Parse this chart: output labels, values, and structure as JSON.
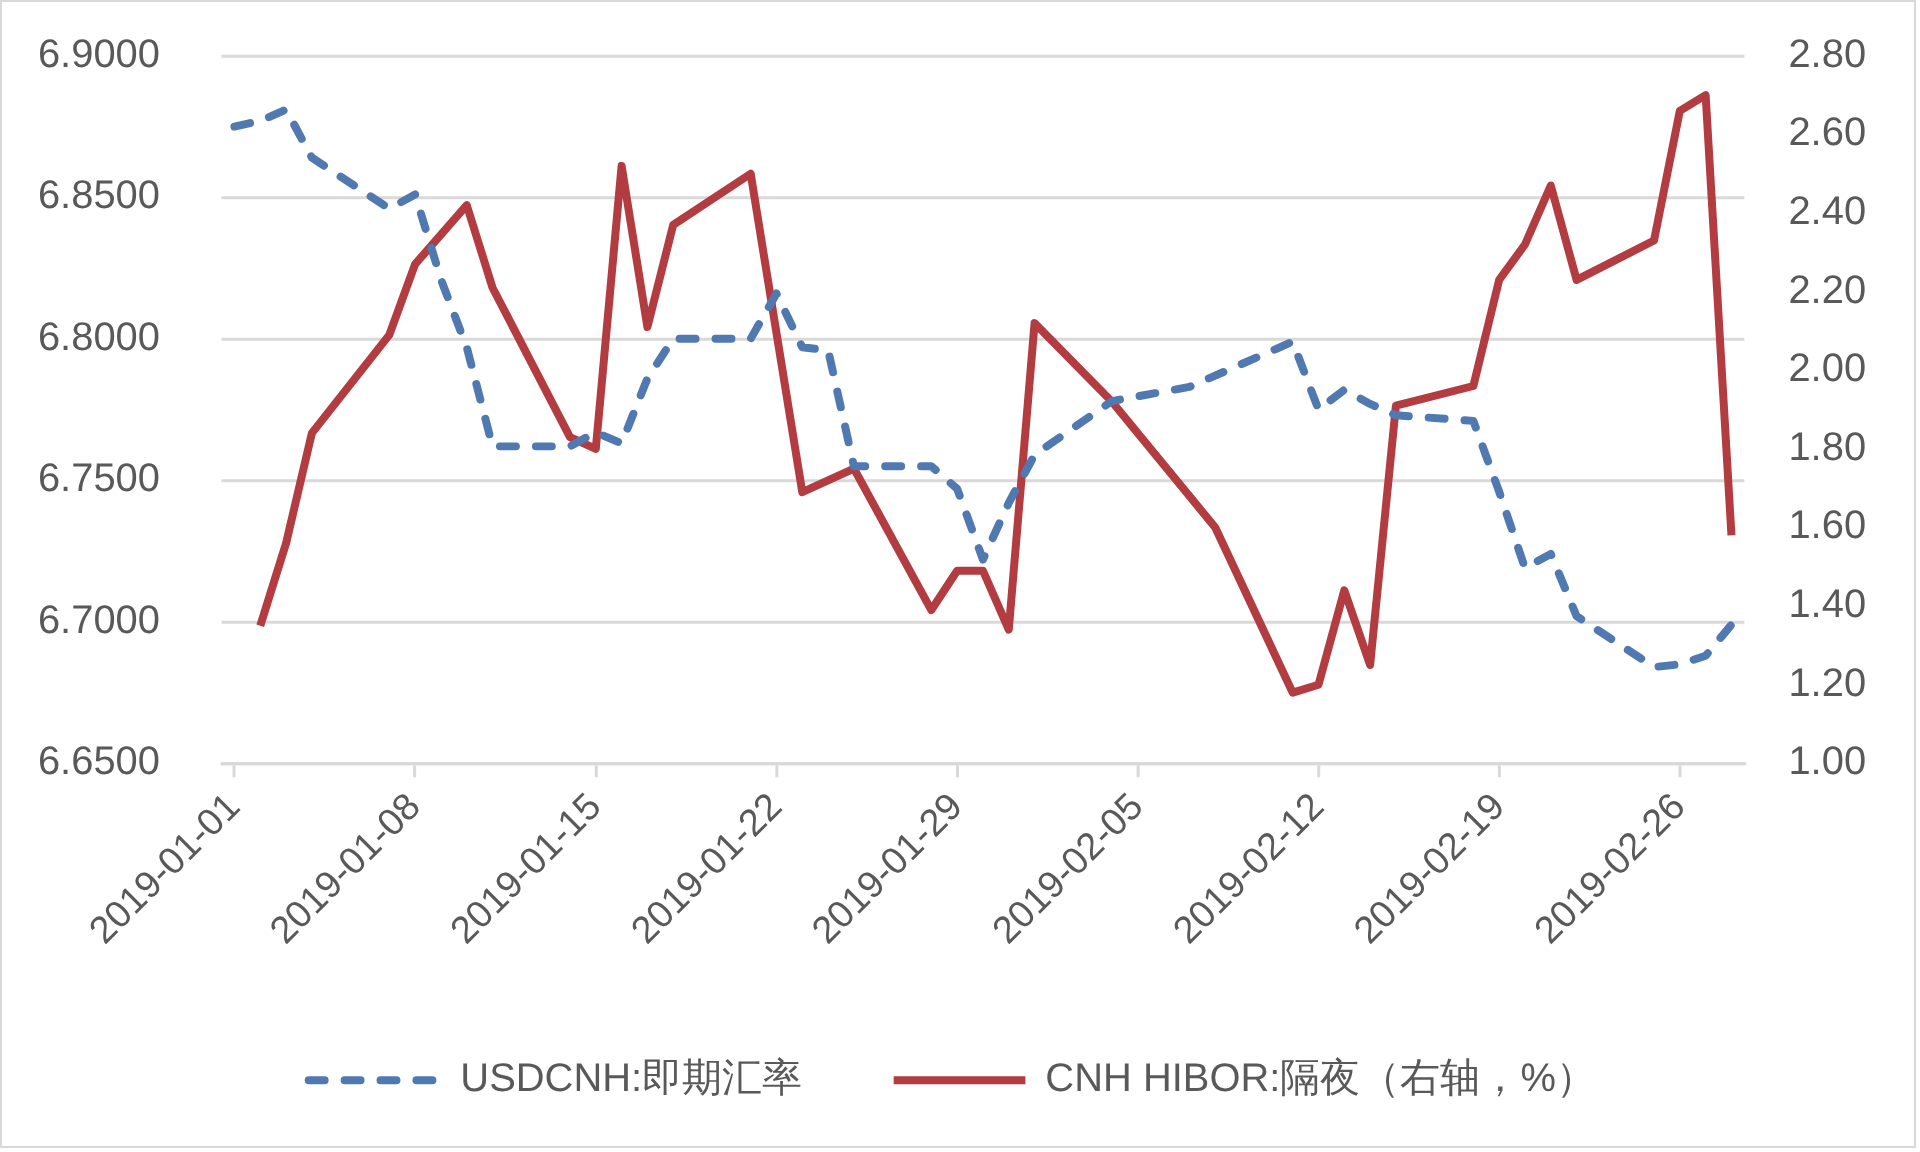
{
  "chart_data": {
    "type": "line",
    "xlim": [
      "2018-12-31T12:00",
      "2019-02-28T12:00"
    ],
    "xticks": [
      "2019-01-01",
      "2019-01-08",
      "2019-01-15",
      "2019-01-22",
      "2019-01-29",
      "2019-02-05",
      "2019-02-12",
      "2019-02-19",
      "2019-02-26"
    ],
    "ylim": [
      6.65,
      6.9
    ],
    "yticks": [
      {
        "value": 6.65,
        "label": "6.6500"
      },
      {
        "value": 6.7,
        "label": "6.7000"
      },
      {
        "value": 6.75,
        "label": "6.7500"
      },
      {
        "value": 6.8,
        "label": "6.8000"
      },
      {
        "value": 6.85,
        "label": "6.8500"
      },
      {
        "value": 6.9,
        "label": "6.9000"
      }
    ],
    "y2lim": [
      1,
      2.8
    ],
    "y2ticks": [
      {
        "value": 1,
        "label": "1.00"
      },
      {
        "value": 1.2,
        "label": "1.20"
      },
      {
        "value": 1.4,
        "label": "1.40"
      },
      {
        "value": 1.6,
        "label": "1.60"
      },
      {
        "value": 1.8,
        "label": "1.80"
      },
      {
        "value": 2,
        "label": "2.00"
      },
      {
        "value": 2.2,
        "label": "2.20"
      },
      {
        "value": 2.4,
        "label": "2.40"
      },
      {
        "value": 2.6,
        "label": "2.60"
      },
      {
        "value": 2.8,
        "label": "2.80"
      }
    ],
    "grid": "y",
    "legend": "bottom",
    "marker": "none",
    "series": [
      {
        "name": "USDCNH:即期汇率",
        "color": "#4f79b0",
        "line_style": "dashed",
        "x": [
          "2019-01-01",
          "2019-01-02",
          "2019-01-03",
          "2019-01-04",
          "2019-01-07",
          "2019-01-08",
          "2019-01-09",
          "2019-01-10",
          "2019-01-11",
          "2019-01-14",
          "2019-01-15",
          "2019-01-16",
          "2019-01-17",
          "2019-01-18",
          "2019-01-21",
          "2019-01-22",
          "2019-01-23",
          "2019-01-24",
          "2019-01-25",
          "2019-01-28",
          "2019-01-29",
          "2019-01-30",
          "2019-01-31",
          "2019-02-01",
          "2019-02-04",
          "2019-02-07",
          "2019-02-08",
          "2019-02-11",
          "2019-02-12",
          "2019-02-13",
          "2019-02-14",
          "2019-02-15",
          "2019-02-18",
          "2019-02-19",
          "2019-02-20",
          "2019-02-21",
          "2019-02-22",
          "2019-02-25",
          "2019-02-26",
          "2019-02-27",
          "2019-02-28"
        ],
        "values": [
          6.875,
          6.877,
          6.881,
          6.864,
          6.846,
          6.851,
          6.821,
          6.797,
          6.762,
          6.762,
          6.767,
          6.763,
          6.786,
          6.8,
          6.8,
          6.816,
          6.797,
          6.796,
          6.755,
          6.755,
          6.747,
          6.722,
          6.742,
          6.759,
          6.778,
          6.783,
          6.787,
          6.799,
          6.775,
          6.782,
          6.777,
          6.773,
          6.771,
          6.746,
          6.719,
          6.724,
          6.702,
          6.684,
          6.685,
          6.688,
          6.699
        ]
      },
      {
        "name": "CNH HIBOR:隔夜（右轴，%）",
        "color": "#b23c3f",
        "line_style": "solid",
        "axis": "y2",
        "x": [
          "2019-01-02",
          "2019-01-03",
          "2019-01-04",
          "2019-01-07",
          "2019-01-08",
          "2019-01-10",
          "2019-01-11",
          "2019-01-14",
          "2019-01-15",
          "2019-01-16",
          "2019-01-17",
          "2019-01-18",
          "2019-01-21",
          "2019-01-23",
          "2019-01-25",
          "2019-01-28",
          "2019-01-29",
          "2019-01-30",
          "2019-01-31",
          "2019-02-01",
          "2019-02-04",
          "2019-02-08",
          "2019-02-11",
          "2019-02-12",
          "2019-02-13",
          "2019-02-14",
          "2019-02-15",
          "2019-02-18",
          "2019-02-19",
          "2019-02-20",
          "2019-02-21",
          "2019-02-22",
          "2019-02-25",
          "2019-02-26",
          "2019-02-27",
          "2019-02-28"
        ],
        "values": [
          1.35,
          1.56,
          1.84,
          2.09,
          2.27,
          2.42,
          2.21,
          1.83,
          1.8,
          2.52,
          2.11,
          2.37,
          2.5,
          1.69,
          1.75,
          1.39,
          1.49,
          1.49,
          1.34,
          2.12,
          1.92,
          1.6,
          1.18,
          1.2,
          1.44,
          1.25,
          1.91,
          1.96,
          2.23,
          2.32,
          2.47,
          2.23,
          2.33,
          2.66,
          2.7,
          1.58
        ]
      }
    ]
  }
}
